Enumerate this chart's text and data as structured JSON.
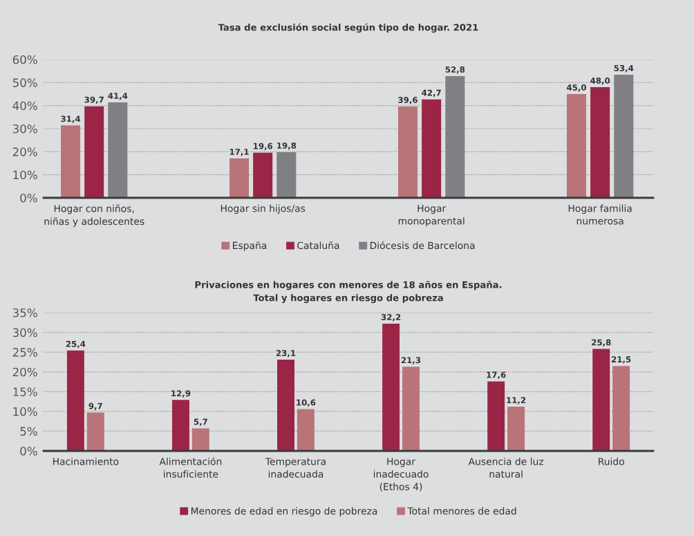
{
  "chart_data": [
    {
      "type": "bar",
      "title": "Tasa de exclusión social según tipo de hogar. 2021",
      "categories": [
        "Hogar con niños,\nniñas y adolescentes",
        "Hogar sin hijos/as",
        "Hogar\nmonoparental",
        "Hogar familia\nnumerosa"
      ],
      "series": [
        {
          "name": "España",
          "color": "#b97479",
          "values": [
            31.4,
            17.1,
            39.6,
            45.0
          ],
          "value_labels": [
            "31,4",
            "17,1",
            "39,6",
            "45,0"
          ]
        },
        {
          "name": "Cataluña",
          "color": "#9b2546",
          "values": [
            39.7,
            19.6,
            42.7,
            48.0
          ],
          "value_labels": [
            "39,7",
            "19,6",
            "42,7",
            "48,0"
          ]
        },
        {
          "name": "Diócesis de Barcelona",
          "color": "#808084",
          "values": [
            41.4,
            19.8,
            52.8,
            53.4
          ],
          "value_labels": [
            "41,4",
            "19,8",
            "52,8",
            "53,4"
          ]
        }
      ],
      "ylim": [
        0,
        60
      ],
      "yticks": [
        {
          "value": 0,
          "label": "0%"
        },
        {
          "value": 10,
          "label": "10%"
        },
        {
          "value": 20,
          "label": "20%"
        },
        {
          "value": 30,
          "label": "30%"
        },
        {
          "value": 40,
          "label": "40%"
        },
        {
          "value": 50,
          "label": "50%"
        },
        {
          "value": 60,
          "label": "60%"
        }
      ],
      "grid": "y",
      "legend": "bottom"
    },
    {
      "type": "bar",
      "title": "Privaciones en hogares con menores de 18 años en España.\nTotal y hogares en riesgo de pobreza",
      "categories": [
        "Hacinamiento",
        "Alimentación\ninsuficiente",
        "Temperatura\ninadecuada",
        "Hogar\ninadecuado\n(Ethos 4)",
        "Ausencia de luz\nnatural",
        "Ruido"
      ],
      "series": [
        {
          "name": "Menores de edad en riesgo de pobreza",
          "color": "#9b2546",
          "values": [
            25.4,
            12.9,
            23.1,
            32.2,
            17.6,
            25.8
          ],
          "value_labels": [
            "25,4",
            "12,9",
            "23,1",
            "32,2",
            "17,6",
            "25,8"
          ]
        },
        {
          "name": "Total menores de edad",
          "color": "#b97479",
          "values": [
            9.7,
            5.7,
            10.6,
            21.3,
            11.2,
            21.5
          ],
          "value_labels": [
            "9,7",
            "5,7",
            "10,6",
            "21,3",
            "11,2",
            "21,5"
          ]
        }
      ],
      "ylim": [
        0,
        35
      ],
      "yticks": [
        {
          "value": 0,
          "label": "0%"
        },
        {
          "value": 5,
          "label": "5%"
        },
        {
          "value": 10,
          "label": "10%"
        },
        {
          "value": 15,
          "label": "15%"
        },
        {
          "value": 20,
          "label": "20%"
        },
        {
          "value": 25,
          "label": "25%"
        },
        {
          "value": 30,
          "label": "30%"
        },
        {
          "value": 35,
          "label": "35%"
        }
      ],
      "grid": "y",
      "legend": "bottom"
    }
  ]
}
